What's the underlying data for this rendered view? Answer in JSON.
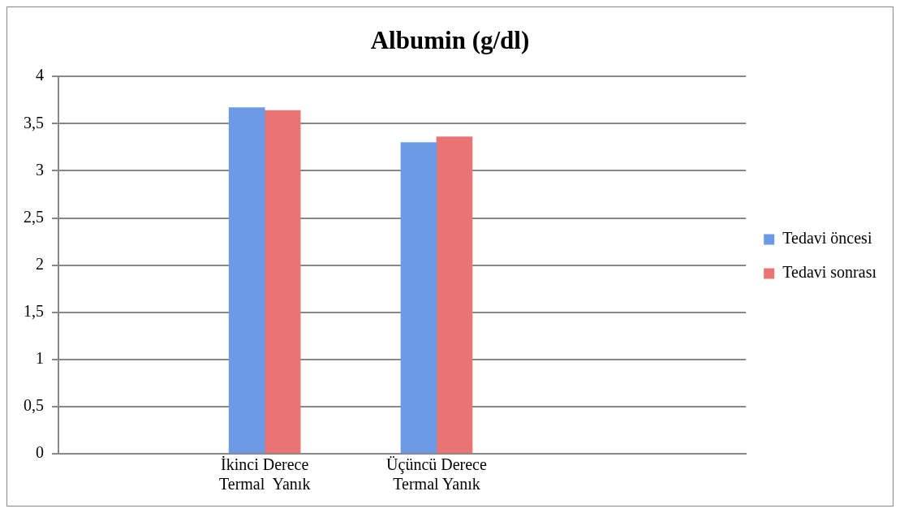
{
  "chart_data": {
    "type": "bar",
    "title": "Albumin (g/dl)",
    "categories": [
      "İkinci Derece\nTermal  Yanık",
      "Üçüncü Derece\nTermal Yanık"
    ],
    "series": [
      {
        "name": "Tedavi öncesi",
        "color": "#6b9be6",
        "values": [
          3.67,
          3.3
        ]
      },
      {
        "name": "Tedavi sonrası",
        "color": "#e87474",
        "values": [
          3.64,
          3.36
        ]
      }
    ],
    "ylim": [
      0,
      4
    ],
    "yticks": [
      0,
      {
        "value": 0.5,
        "label": "0,5"
      },
      1,
      {
        "value": 1.5,
        "label": "1,5"
      },
      2,
      {
        "value": 2.5,
        "label": "2,5"
      },
      3,
      {
        "value": 3.5,
        "label": "3,5"
      },
      4
    ],
    "grid": "y",
    "legend": "right"
  }
}
